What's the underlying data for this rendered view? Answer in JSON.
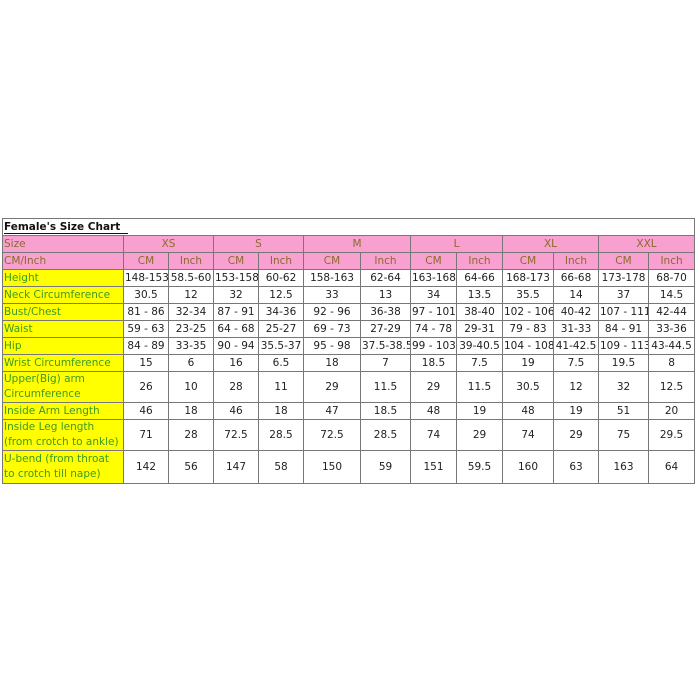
{
  "title": "Female's Size Chart",
  "header": {
    "size_label": "Size",
    "unit_label": "CM/Inch",
    "sizes": [
      "XS",
      "S",
      "M",
      "L",
      "XL",
      "XXL"
    ],
    "units": [
      "CM",
      "Inch"
    ]
  },
  "colors": {
    "header_bg": "#f8a0d0",
    "label_bg": "#ffff00",
    "label_text": "#3c9a22"
  },
  "rows": [
    {
      "label": "Height",
      "values": [
        "148-153",
        "58.5-60",
        "153-158",
        "60-62",
        "158-163",
        "62-64",
        "163-168",
        "64-66",
        "168-173",
        "66-68",
        "173-178",
        "68-70"
      ]
    },
    {
      "label": "Neck Circumference",
      "values": [
        "30.5",
        "12",
        "32",
        "12.5",
        "33",
        "13",
        "34",
        "13.5",
        "35.5",
        "14",
        "37",
        "14.5"
      ]
    },
    {
      "label": "Bust/Chest",
      "values": [
        "81 - 86",
        "32-34",
        "87 - 91",
        "34-36",
        "92 - 96",
        "36-38",
        "97 - 101",
        "38-40",
        "102 - 106",
        "40-42",
        "107 - 111",
        "42-44"
      ]
    },
    {
      "label": "Waist",
      "values": [
        "59 - 63",
        "23-25",
        "64 - 68",
        "25-27",
        "69 - 73",
        "27-29",
        "74 - 78",
        "29-31",
        "79 - 83",
        "31-33",
        "84 - 91",
        "33-36"
      ]
    },
    {
      "label": "Hip",
      "values": [
        "84 - 89",
        "33-35",
        "90 - 94",
        "35.5-37",
        "95 - 98",
        "37.5-38.5",
        "99 - 103",
        "39-40.5",
        "104 - 108",
        "41-42.5",
        "109 - 113",
        "43-44.5"
      ]
    },
    {
      "label": "Wrist Circumference",
      "values": [
        "15",
        "6",
        "16",
        "6.5",
        "18",
        "7",
        "18.5",
        "7.5",
        "19",
        "7.5",
        "19.5",
        "8"
      ]
    },
    {
      "label": "Upper(Big) arm Circumference",
      "values": [
        "26",
        "10",
        "28",
        "11",
        "29",
        "11.5",
        "29",
        "11.5",
        "30.5",
        "12",
        "32",
        "12.5"
      ]
    },
    {
      "label": "Inside Arm Length",
      "values": [
        "46",
        "18",
        "46",
        "18",
        "47",
        "18.5",
        "48",
        "19",
        "48",
        "19",
        "51",
        "20"
      ]
    },
    {
      "label": "Inside Leg length (from crotch to ankle)",
      "values": [
        "71",
        "28",
        "72.5",
        "28.5",
        "72.5",
        "28.5",
        "74",
        "29",
        "74",
        "29",
        "75",
        "29.5"
      ]
    },
    {
      "label": "U-bend (from throat to crotch till nape)",
      "values": [
        "142",
        "56",
        "147",
        "58",
        "150",
        "59",
        "151",
        "59.5",
        "160",
        "63",
        "163",
        "64"
      ]
    }
  ]
}
